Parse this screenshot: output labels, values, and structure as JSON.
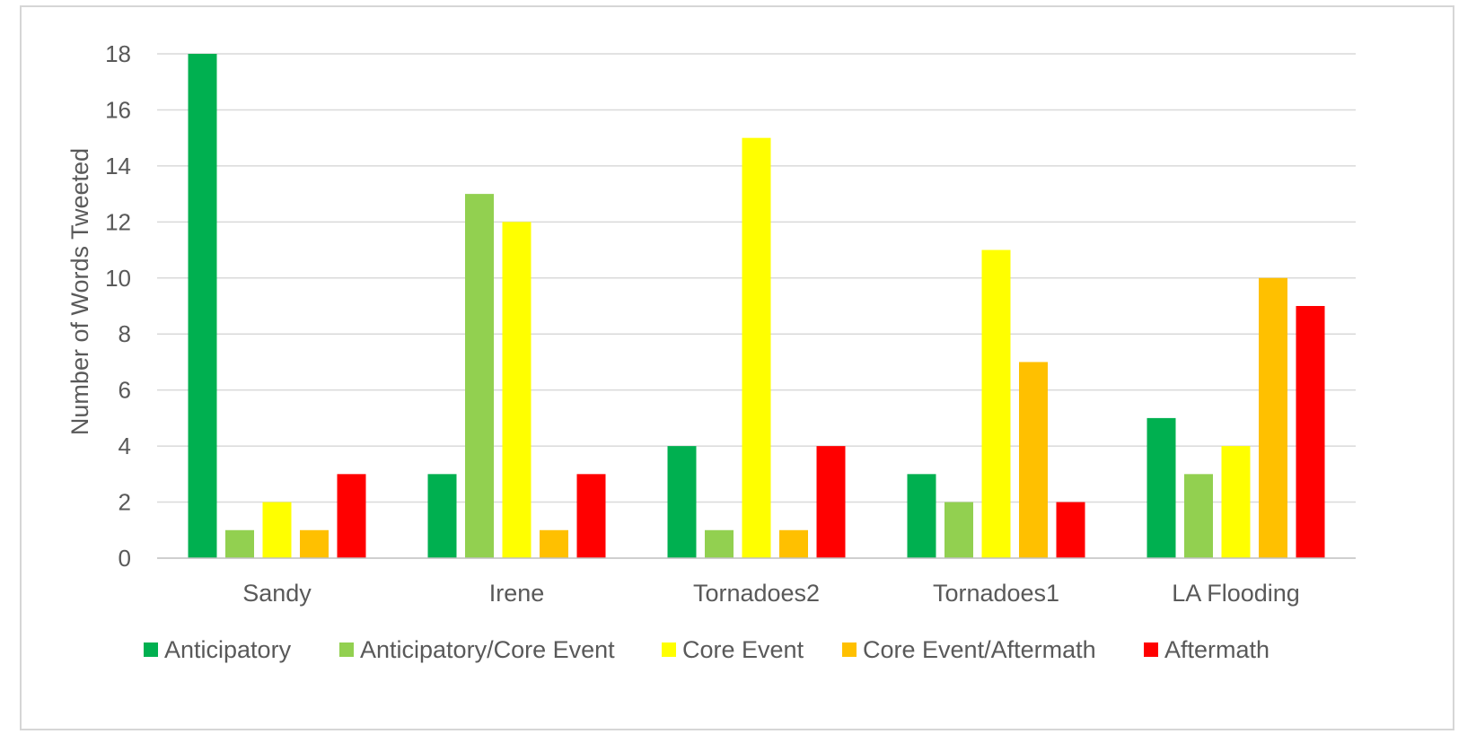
{
  "chart_data": {
    "type": "bar",
    "title": "",
    "xlabel": "",
    "ylabel": "Number of Words Tweeted",
    "ylim": [
      0,
      18
    ],
    "yticks": [
      0,
      2,
      4,
      6,
      8,
      10,
      12,
      14,
      16,
      18
    ],
    "grid": true,
    "legend_position": "bottom",
    "categories": [
      "Sandy",
      "Irene",
      "Tornadoes2",
      "Tornadoes1",
      "LA Flooding"
    ],
    "series": [
      {
        "name": "Anticipatory",
        "color": "#00b050",
        "values": [
          18,
          3,
          4,
          3,
          5
        ]
      },
      {
        "name": "Anticipatory/Core Event",
        "color": "#92d050",
        "values": [
          1,
          13,
          1,
          2,
          3
        ]
      },
      {
        "name": "Core Event",
        "color": "#ffff00",
        "values": [
          2,
          12,
          15,
          11,
          4
        ]
      },
      {
        "name": "Core Event/Aftermath",
        "color": "#ffc000",
        "values": [
          1,
          1,
          1,
          7,
          10
        ]
      },
      {
        "name": "Aftermath",
        "color": "#ff0000",
        "values": [
          3,
          3,
          4,
          2,
          9
        ]
      }
    ]
  }
}
